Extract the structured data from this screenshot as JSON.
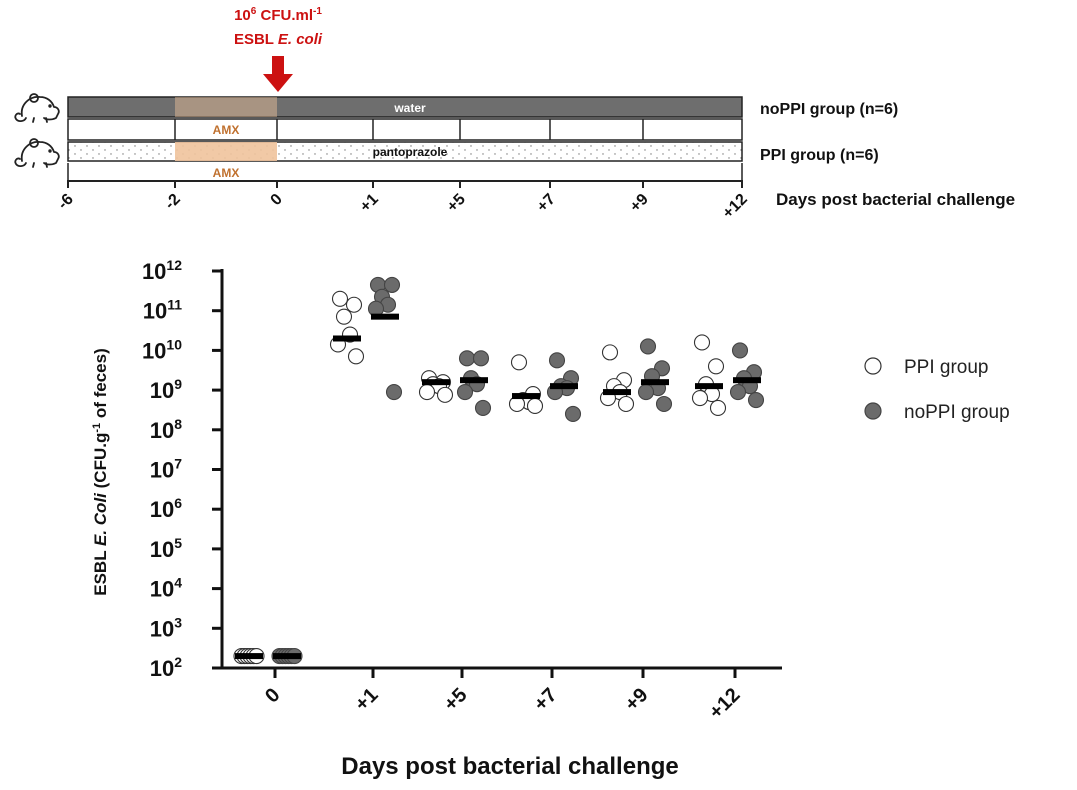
{
  "timeline": {
    "challenge": {
      "dose_base": "10",
      "dose_exp": "6",
      "dose_unit": " CFU.ml",
      "dose_unit_exp": "-1",
      "strain_prefix": "ESBL ",
      "strain_italic": "E. coli"
    },
    "rows": {
      "noppi_treatment": "water",
      "noppi_antibiotic": "AMX",
      "ppi_treatment": "pantoprazole",
      "ppi_antibiotic": "AMX"
    },
    "labels": {
      "noppi_group": "noPPI group (n=6)",
      "ppi_group": "PPI group (n=6)",
      "axis_title": "Days post bacterial challenge"
    },
    "ticks": [
      "-6",
      "-2",
      "0",
      "+1",
      "+5",
      "+7",
      "+9",
      "+12"
    ],
    "colors": {
      "water_bar": "#6e6e6e",
      "amx_bar": "#f0c39c",
      "amx_text": "#c0712f",
      "arrow": "#cc1111",
      "challenge_text": "#cc1111"
    }
  },
  "chart_data": {
    "type": "scatter",
    "xlabel": "Days post bacterial challenge",
    "ylabel": {
      "prefix": "ESBL ",
      "italic": "E. Coli",
      "unit_open": " (CFU.g",
      "unit_exp": "-1",
      "unit_close": " of feces)"
    },
    "yscale": "log",
    "ylim_log10": [
      2,
      12
    ],
    "ytick_base": "10",
    "ytick_exponents": [
      "2",
      "3",
      "4",
      "5",
      "6",
      "7",
      "8",
      "9",
      "10",
      "11",
      "12"
    ],
    "categories": [
      "0",
      "+1",
      "+5",
      "+7",
      "+9",
      "+12"
    ],
    "legend": {
      "position": "right"
    },
    "series": [
      {
        "name": "PPI group",
        "fill": "#ffffff",
        "stroke": "#333333",
        "log10_values": [
          [
            2.3,
            2.3,
            2.3,
            2.3,
            2.3,
            2.3
          ],
          [
            11.3,
            11.15,
            10.85,
            10.4,
            10.15,
            9.85
          ],
          [
            9.3,
            9.2,
            9.15,
            9.1,
            8.95,
            8.88
          ],
          [
            9.7,
            8.9,
            8.75,
            8.7,
            8.65,
            8.6
          ],
          [
            9.95,
            9.25,
            9.1,
            8.95,
            8.8,
            8.65
          ],
          [
            10.2,
            9.6,
            9.15,
            8.9,
            8.8,
            8.55
          ]
        ],
        "median_log10": [
          2.3,
          10.3,
          9.2,
          8.85,
          8.95,
          9.1
        ]
      },
      {
        "name": "noPPI group",
        "fill": "#6b6b6b",
        "stroke": "#444444",
        "log10_values": [
          [
            2.3,
            2.3,
            2.3,
            2.3,
            2.3,
            2.3
          ],
          [
            11.65,
            11.65,
            11.35,
            11.15,
            11.05,
            8.95
          ],
          [
            9.8,
            9.8,
            9.3,
            9.15,
            8.95,
            8.55
          ],
          [
            9.75,
            9.3,
            9.1,
            9.05,
            8.95,
            8.4
          ],
          [
            10.1,
            9.55,
            9.35,
            9.05,
            8.95,
            8.65
          ],
          [
            10.0,
            9.45,
            9.3,
            9.1,
            8.95,
            8.75
          ]
        ],
        "median_log10": [
          2.3,
          10.85,
          9.25,
          9.1,
          9.2,
          9.25
        ]
      }
    ]
  }
}
